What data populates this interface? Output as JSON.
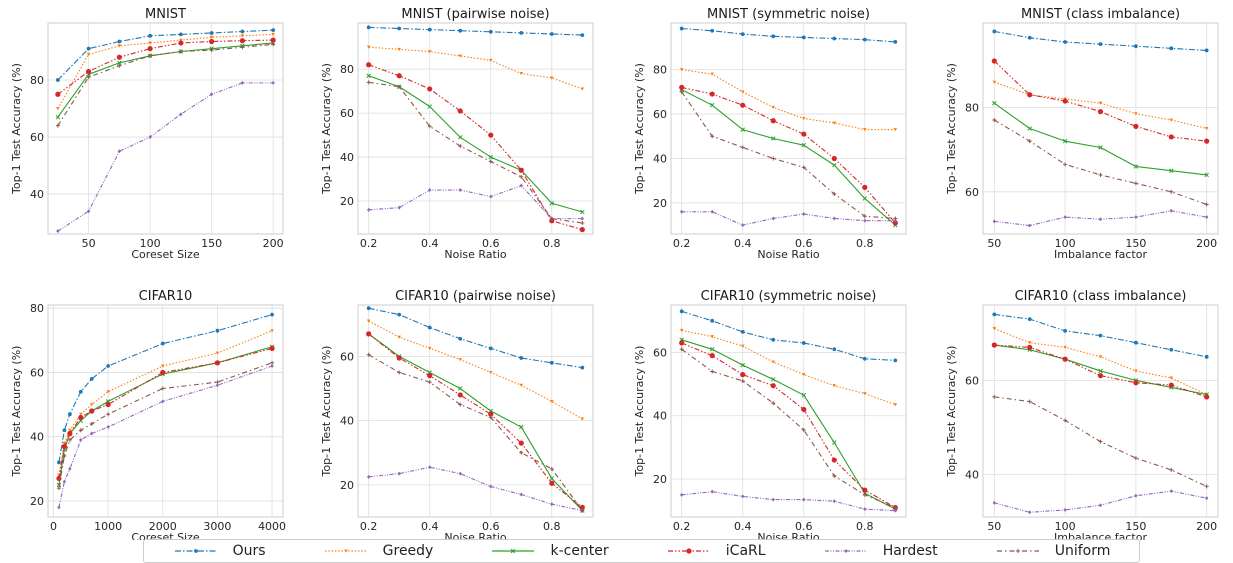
{
  "colors": {
    "Ours": "#1f77b4",
    "Greedy": "#ff7f0e",
    "k-center": "#2ca02c",
    "iCaRL": "#d62728",
    "Hardest": "#9467bd",
    "Uniform": "#8c564b"
  },
  "legend": [
    "Ours",
    "Greedy",
    "k-center",
    "iCaRL",
    "Hardest",
    "Uniform"
  ],
  "chart_data": [
    {
      "type": "line",
      "title": "MNIST",
      "xlabel": "Coreset Size",
      "ylabel": "Top-1 Test Accuracy (%)",
      "x": [
        25,
        50,
        75,
        100,
        125,
        150,
        175,
        200
      ],
      "xlim": [
        17,
        208
      ],
      "ylim": [
        26,
        100
      ],
      "xticks": [
        50,
        100,
        150,
        200
      ],
      "yticks": [
        40,
        60,
        80
      ],
      "series": [
        {
          "name": "Ours",
          "values": [
            80,
            91,
            93.5,
            95.5,
            96,
            96.5,
            97,
            97.5
          ]
        },
        {
          "name": "Greedy",
          "values": [
            70,
            89,
            92,
            93,
            94,
            95,
            95.5,
            96
          ]
        },
        {
          "name": "k-center",
          "values": [
            67,
            82,
            86,
            88.5,
            90,
            91,
            92,
            93
          ]
        },
        {
          "name": "iCaRL",
          "values": [
            75,
            83,
            88,
            91,
            93,
            93.5,
            93.8,
            94
          ]
        },
        {
          "name": "Hardest",
          "values": [
            27,
            34,
            55,
            60,
            68,
            75,
            79,
            79
          ]
        },
        {
          "name": "Uniform",
          "values": [
            64,
            81,
            85,
            88.5,
            90,
            90.5,
            91.5,
            92.5
          ]
        }
      ]
    },
    {
      "type": "line",
      "title": "MNIST (pairwise noise)",
      "xlabel": "Noise Ratio",
      "ylabel": "Top-1 Test Accuracy (%)",
      "x": [
        0.2,
        0.3,
        0.4,
        0.5,
        0.6,
        0.7,
        0.8,
        0.9
      ],
      "xlim": [
        0.165,
        0.935
      ],
      "ylim": [
        5,
        101
      ],
      "xticks": [
        0.2,
        0.4,
        0.6,
        0.8
      ],
      "yticks": [
        20,
        40,
        60,
        80
      ],
      "series": [
        {
          "name": "Ours",
          "values": [
            99,
            98.5,
            98,
            97.5,
            97,
            96.5,
            96,
            95.5
          ]
        },
        {
          "name": "Greedy",
          "values": [
            90,
            89,
            88,
            86,
            84,
            78,
            76,
            71
          ]
        },
        {
          "name": "k-center",
          "values": [
            77,
            72,
            63,
            49,
            40,
            34,
            19,
            15
          ]
        },
        {
          "name": "iCaRL",
          "values": [
            82,
            77,
            71,
            61,
            50,
            34,
            11,
            7
          ]
        },
        {
          "name": "Hardest",
          "values": [
            16,
            17,
            25,
            25,
            22,
            27,
            12,
            12
          ]
        },
        {
          "name": "Uniform",
          "values": [
            74,
            72,
            54,
            45,
            38,
            31,
            12,
            10
          ]
        }
      ]
    },
    {
      "type": "line",
      "title": "MNIST (symmetric noise)",
      "xlabel": "Noise Ratio",
      "ylabel": "Top-1 Test Accuracy (%)",
      "x": [
        0.2,
        0.3,
        0.4,
        0.5,
        0.6,
        0.7,
        0.8,
        0.9
      ],
      "xlim": [
        0.165,
        0.935
      ],
      "ylim": [
        6,
        101
      ],
      "xticks": [
        0.2,
        0.4,
        0.6,
        0.8
      ],
      "yticks": [
        20,
        40,
        60,
        80
      ],
      "series": [
        {
          "name": "Ours",
          "values": [
            98.5,
            97.5,
            96,
            95,
            94.5,
            94,
            93.5,
            92.5
          ]
        },
        {
          "name": "Greedy",
          "values": [
            80,
            78,
            70,
            63,
            58,
            56,
            53,
            53
          ]
        },
        {
          "name": "k-center",
          "values": [
            71,
            64,
            53,
            49,
            46,
            37,
            22,
            10
          ]
        },
        {
          "name": "iCaRL",
          "values": [
            72,
            69,
            64,
            57,
            51,
            40,
            27,
            11
          ]
        },
        {
          "name": "Hardest",
          "values": [
            16,
            16,
            10,
            13,
            15,
            13,
            12,
            12
          ]
        },
        {
          "name": "Uniform",
          "values": [
            70,
            50,
            45,
            40,
            36,
            24,
            14,
            13
          ]
        }
      ]
    },
    {
      "type": "line",
      "title": "MNIST (class imbalance)",
      "xlabel": "Imbalance factor",
      "ylabel": "Top-1 Test Accuracy (%)",
      "x": [
        50,
        75,
        100,
        125,
        150,
        175,
        200
      ],
      "xlim": [
        42,
        208
      ],
      "ylim": [
        50,
        100
      ],
      "xticks": [
        50,
        100,
        150,
        200
      ],
      "yticks": [
        60,
        80
      ],
      "series": [
        {
          "name": "Ours",
          "values": [
            98,
            96.5,
            95.5,
            95,
            94.5,
            94,
            93.5
          ]
        },
        {
          "name": "Greedy",
          "values": [
            86,
            83,
            82,
            81,
            78.5,
            77,
            75
          ]
        },
        {
          "name": "k-center",
          "values": [
            81,
            75,
            72,
            70.5,
            66,
            65,
            64
          ]
        },
        {
          "name": "iCaRL",
          "values": [
            91,
            83,
            81.5,
            79,
            75.5,
            73,
            72
          ]
        },
        {
          "name": "Hardest",
          "values": [
            53,
            52,
            54,
            53.5,
            54,
            55.5,
            54
          ]
        },
        {
          "name": "Uniform",
          "values": [
            77,
            72,
            66.5,
            64,
            62,
            60,
            57
          ]
        }
      ]
    },
    {
      "type": "line",
      "title": "CIFAR10",
      "xlabel": "Coreset Size",
      "ylabel": "Top-1 Test Accuracy (%)",
      "x": [
        100,
        200,
        300,
        500,
        700,
        1000,
        2000,
        3000,
        4000
      ],
      "xlim": [
        -100,
        4200
      ],
      "ylim": [
        15,
        81
      ],
      "xticks": [
        0,
        1000,
        2000,
        3000,
        4000
      ],
      "yticks": [
        20,
        40,
        60,
        80
      ],
      "series": [
        {
          "name": "Ours",
          "values": [
            32,
            42,
            47,
            54,
            58,
            62,
            69,
            73,
            78
          ]
        },
        {
          "name": "Greedy",
          "values": [
            28,
            38,
            42,
            47,
            50,
            54,
            62,
            66,
            73
          ]
        },
        {
          "name": "k-center",
          "values": [
            25,
            36,
            41,
            45,
            48,
            51,
            59.5,
            63,
            68
          ]
        },
        {
          "name": "iCaRL",
          "values": [
            27,
            37,
            41,
            46,
            48,
            50,
            60,
            63,
            67.5
          ]
        },
        {
          "name": "Hardest",
          "values": [
            18,
            26,
            30,
            39,
            41,
            43,
            51,
            56,
            62
          ]
        },
        {
          "name": "Uniform",
          "values": [
            24,
            34,
            39,
            42,
            44,
            47,
            55,
            57,
            63
          ]
        }
      ]
    },
    {
      "type": "line",
      "title": "CIFAR10 (pairwise noise)",
      "xlabel": "Noise Ratio",
      "ylabel": "Top-1 Test Accuracy (%)",
      "x": [
        0.2,
        0.3,
        0.4,
        0.5,
        0.6,
        0.7,
        0.8,
        0.9
      ],
      "xlim": [
        0.165,
        0.935
      ],
      "ylim": [
        10,
        76
      ],
      "xticks": [
        0.2,
        0.4,
        0.6,
        0.8
      ],
      "yticks": [
        20,
        40,
        60
      ],
      "series": [
        {
          "name": "Ours",
          "values": [
            75,
            73,
            69,
            65.5,
            62.5,
            59.5,
            58,
            56.5
          ]
        },
        {
          "name": "Greedy",
          "values": [
            71,
            66,
            62.5,
            59,
            55,
            51,
            46,
            40.5
          ]
        },
        {
          "name": "k-center",
          "values": [
            67,
            60,
            55,
            50,
            43,
            38,
            22,
            12
          ]
        },
        {
          "name": "iCaRL",
          "values": [
            67,
            59.5,
            54,
            48,
            42,
            33,
            20.5,
            13
          ]
        },
        {
          "name": "Hardest",
          "values": [
            22.5,
            23.5,
            25.5,
            23.5,
            19.5,
            17,
            14,
            12
          ]
        },
        {
          "name": "Uniform",
          "values": [
            60.5,
            55,
            52,
            45,
            41,
            30,
            25,
            12
          ]
        }
      ]
    },
    {
      "type": "line",
      "title": "CIFAR10 (symmetric noise)",
      "xlabel": "Noise Ratio",
      "ylabel": "Top-1 Test Accuracy (%)",
      "x": [
        0.2,
        0.3,
        0.4,
        0.5,
        0.6,
        0.7,
        0.8,
        0.9
      ],
      "xlim": [
        0.165,
        0.935
      ],
      "ylim": [
        8,
        75
      ],
      "xticks": [
        0.2,
        0.4,
        0.6,
        0.8
      ],
      "yticks": [
        20,
        40,
        60
      ],
      "series": [
        {
          "name": "Ours",
          "values": [
            73,
            70,
            66.5,
            64,
            63,
            61,
            58,
            57.5
          ]
        },
        {
          "name": "Greedy",
          "values": [
            67,
            65,
            62,
            57,
            53,
            49.5,
            47,
            43.5
          ]
        },
        {
          "name": "k-center",
          "values": [
            64,
            61,
            56,
            51.5,
            46.5,
            31.5,
            15.5,
            10.5
          ]
        },
        {
          "name": "iCaRL",
          "values": [
            63,
            59,
            53,
            49.5,
            42,
            26,
            16.5,
            11
          ]
        },
        {
          "name": "Hardest",
          "values": [
            15,
            16,
            14.5,
            13.5,
            13.5,
            13,
            10.5,
            10
          ]
        },
        {
          "name": "Uniform",
          "values": [
            61,
            54,
            51,
            44,
            35.5,
            21,
            15,
            11
          ]
        }
      ]
    },
    {
      "type": "line",
      "title": "CIFAR10 (class imbalance)",
      "xlabel": "Imbalance factor",
      "ylabel": "Top-1 Test Accuracy (%)",
      "x": [
        50,
        75,
        100,
        125,
        150,
        175,
        200
      ],
      "xlim": [
        42,
        208
      ],
      "ylim": [
        31,
        76
      ],
      "xticks": [
        50,
        100,
        150,
        200
      ],
      "yticks": [
        40,
        60
      ],
      "series": [
        {
          "name": "Ours",
          "values": [
            74,
            73,
            70.5,
            69.5,
            68,
            66.5,
            65
          ]
        },
        {
          "name": "Greedy",
          "values": [
            71,
            68,
            67,
            65,
            62,
            60.5,
            57
          ]
        },
        {
          "name": "k-center",
          "values": [
            67.5,
            66.5,
            64.5,
            62,
            60,
            58.5,
            57
          ]
        },
        {
          "name": "iCaRL",
          "values": [
            67.5,
            67,
            64.5,
            61,
            59.5,
            59,
            56.5
          ]
        },
        {
          "name": "Hardest",
          "values": [
            34,
            32,
            32.5,
            33.5,
            35.5,
            36.5,
            35
          ]
        },
        {
          "name": "Uniform",
          "values": [
            56.5,
            55.5,
            51.5,
            47,
            43.5,
            41,
            37.5
          ]
        }
      ]
    }
  ]
}
